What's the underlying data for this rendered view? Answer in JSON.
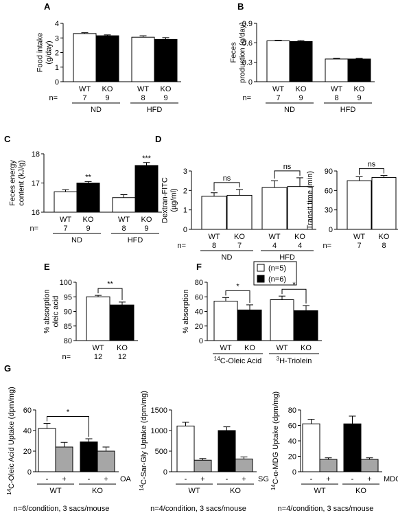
{
  "chart_data": [
    {
      "id": "A",
      "type": "bar",
      "panel_label": "A",
      "ylabel": "Food intake\n(g/day)",
      "ylim": [
        0,
        4
      ],
      "yticks": [
        "0",
        "1",
        "2",
        "3",
        "4"
      ],
      "n_prefix": "n=",
      "bars": [
        {
          "category": "WT",
          "value": 3.3,
          "error": 0.06,
          "fill": "white",
          "n": "7"
        },
        {
          "category": "KO",
          "value": 3.15,
          "error": 0.06,
          "fill": "black",
          "n": "9"
        },
        {
          "category": "WT",
          "value": 3.05,
          "error": 0.1,
          "fill": "white",
          "n": "8"
        },
        {
          "category": "KO",
          "value": 2.9,
          "error": 0.12,
          "fill": "black",
          "n": "9"
        }
      ],
      "groups": [
        {
          "label": "ND",
          "bars": [
            0,
            1
          ]
        },
        {
          "label": "HFD",
          "bars": [
            2,
            3
          ]
        }
      ]
    },
    {
      "id": "B",
      "type": "bar",
      "panel_label": "B",
      "ylabel": "Feces\nproduction (g/day)",
      "ylim": [
        0,
        0.9
      ],
      "yticks": [
        "0",
        "0.3",
        "0.6",
        "0.9"
      ],
      "n_prefix": "n=",
      "bars": [
        {
          "category": "WT",
          "value": 0.63,
          "error": 0.01,
          "fill": "white",
          "n": "7"
        },
        {
          "category": "KO",
          "value": 0.62,
          "error": 0.015,
          "fill": "black",
          "n": "9"
        },
        {
          "category": "WT",
          "value": 0.35,
          "error": 0.01,
          "fill": "white",
          "n": "8"
        },
        {
          "category": "KO",
          "value": 0.35,
          "error": 0.01,
          "fill": "black",
          "n": "9"
        }
      ],
      "groups": [
        {
          "label": "ND",
          "bars": [
            0,
            1
          ]
        },
        {
          "label": "HFD",
          "bars": [
            2,
            3
          ]
        }
      ]
    },
    {
      "id": "C",
      "type": "bar",
      "panel_label": "C",
      "ylabel": "Feces energy\ncontent (kJ/g)",
      "ylim": [
        16,
        18
      ],
      "yticks": [
        "16",
        "17",
        "18"
      ],
      "n_prefix": "n=",
      "bars": [
        {
          "category": "WT",
          "value": 16.7,
          "error": 0.07,
          "fill": "white",
          "n": "7"
        },
        {
          "category": "KO",
          "value": 17.0,
          "error": 0.05,
          "fill": "black",
          "n": "9",
          "sig": "**"
        },
        {
          "category": "WT",
          "value": 16.5,
          "error": 0.1,
          "fill": "white",
          "n": "8"
        },
        {
          "category": "KO",
          "value": 17.6,
          "error": 0.1,
          "fill": "black",
          "n": "9",
          "sig": "***"
        }
      ],
      "groups": [
        {
          "label": "ND",
          "bars": [
            0,
            1
          ]
        },
        {
          "label": "HFD",
          "bars": [
            2,
            3
          ]
        }
      ]
    },
    {
      "id": "D1",
      "type": "bar",
      "panel_label": "D",
      "ylabel": "Dextran-FITC\n(µg/ml)",
      "ylim": [
        0,
        3
      ],
      "yticks": [
        "0",
        "1",
        "2",
        "3"
      ],
      "n_prefix": "n=",
      "bars": [
        {
          "category": "WT",
          "value": 1.7,
          "error": 0.18,
          "fill": "white",
          "n": "8"
        },
        {
          "category": "KO",
          "value": 1.75,
          "error": 0.3,
          "fill": "white",
          "n": "7"
        },
        {
          "category": "WT",
          "value": 2.15,
          "error": 0.35,
          "fill": "white",
          "n": "4"
        },
        {
          "category": "KO",
          "value": 2.2,
          "error": 0.45,
          "fill": "white",
          "n": "4"
        }
      ],
      "groups": [
        {
          "label": "ND",
          "bars": [
            0,
            1
          ]
        },
        {
          "label": "HFD",
          "bars": [
            2,
            3
          ]
        }
      ],
      "brackets": [
        {
          "from": 0,
          "to": 1,
          "label": "ns"
        },
        {
          "from": 2,
          "to": 3,
          "label": "ns"
        }
      ]
    },
    {
      "id": "D2",
      "type": "bar",
      "panel_label": "",
      "ylabel": "Transit time (min)",
      "ylim": [
        0,
        90
      ],
      "yticks": [
        "0",
        "30",
        "60",
        "90"
      ],
      "n_prefix": "n=",
      "bars": [
        {
          "category": "WT",
          "value": 75,
          "error": 6,
          "fill": "white",
          "n": "7"
        },
        {
          "category": "KO",
          "value": 80,
          "error": 3,
          "fill": "white",
          "n": "8"
        }
      ],
      "groups": [],
      "brackets": [
        {
          "from": 0,
          "to": 1,
          "label": "ns"
        }
      ]
    },
    {
      "id": "E",
      "type": "bar",
      "panel_label": "E",
      "ylabel": "% absorption\noleic acid",
      "ylim": [
        80,
        100
      ],
      "yticks": [
        "80",
        "85",
        "90",
        "95",
        "100"
      ],
      "n_prefix": "n=",
      "bars": [
        {
          "category": "WT",
          "value": 95,
          "error": 0.5,
          "fill": "white",
          "n": "12"
        },
        {
          "category": "KO",
          "value": 92.2,
          "error": 1.0,
          "fill": "black",
          "n": "12"
        }
      ],
      "groups": [],
      "brackets": [
        {
          "from": 0,
          "to": 1,
          "label": "**"
        }
      ]
    },
    {
      "id": "F",
      "type": "bar",
      "panel_label": "F",
      "ylabel": "% absorption",
      "ylim": [
        0,
        80
      ],
      "yticks": [
        "0",
        "20",
        "40",
        "60",
        "80"
      ],
      "legend": [
        {
          "label": "(n=5)",
          "fill": "white"
        },
        {
          "label": "(n=6)",
          "fill": "black"
        }
      ],
      "bars": [
        {
          "category": "WT",
          "value": 54,
          "error": 5,
          "fill": "white"
        },
        {
          "category": "KO",
          "value": 42,
          "error": 7,
          "fill": "black"
        },
        {
          "category": "WT",
          "value": 56,
          "error": 5,
          "fill": "white"
        },
        {
          "category": "KO",
          "value": 41,
          "error": 7,
          "fill": "black"
        }
      ],
      "groups_sup": [
        {
          "sup": "14",
          "label": "C-Oleic Acid",
          "bars": [
            0,
            1
          ]
        },
        {
          "sup": "3",
          "label": "H-Triolein",
          "bars": [
            2,
            3
          ]
        }
      ],
      "brackets": [
        {
          "from": 0,
          "to": 1,
          "label": "*"
        },
        {
          "from": 2,
          "to": 3,
          "label": "*"
        }
      ]
    },
    {
      "id": "G1",
      "type": "bar",
      "panel_label": "G",
      "ylabel_sup": "14",
      "ylabel": "C-Oleic Acid Uptake (dpm/mg)",
      "ylim": [
        0,
        60
      ],
      "yticks": [
        "0",
        "20",
        "40",
        "60"
      ],
      "treatment": "OA",
      "bars": [
        {
          "category": "-",
          "value": 42,
          "error": 5,
          "fill": "white"
        },
        {
          "category": "+",
          "value": 24,
          "error": 4.5,
          "fill": "gray"
        },
        {
          "category": "-",
          "value": 29,
          "error": 3,
          "fill": "black"
        },
        {
          "category": "+",
          "value": 20,
          "error": 4,
          "fill": "gray"
        }
      ],
      "groups": [
        {
          "label": "WT",
          "bars": [
            0,
            1
          ]
        },
        {
          "label": "KO",
          "bars": [
            2,
            3
          ]
        }
      ],
      "brackets": [
        {
          "from": 0,
          "to": 2,
          "label": "*"
        }
      ],
      "footnote": "n=6/condition, 3 sacs/mouse"
    },
    {
      "id": "G2",
      "type": "bar",
      "panel_label": "",
      "ylabel_sup": "14",
      "ylabel": "C-Sar-Gly Uptake (dpm/mg)",
      "ylim": [
        0,
        1500
      ],
      "yticks": [
        "0",
        "500",
        "1000",
        "1500"
      ],
      "treatment": "SG",
      "bars": [
        {
          "category": "-",
          "value": 1110,
          "error": 90,
          "fill": "white"
        },
        {
          "category": "+",
          "value": 280,
          "error": 40,
          "fill": "gray"
        },
        {
          "category": "-",
          "value": 1000,
          "error": 90,
          "fill": "black"
        },
        {
          "category": "+",
          "value": 310,
          "error": 50,
          "fill": "gray"
        }
      ],
      "groups": [
        {
          "label": "WT",
          "bars": [
            0,
            1
          ]
        },
        {
          "label": "KO",
          "bars": [
            2,
            3
          ]
        }
      ],
      "footnote": "n=4/condition, 3 sacs/mouse"
    },
    {
      "id": "G3",
      "type": "bar",
      "panel_label": "",
      "ylabel_sup": "14",
      "ylabel": "C-α-MDG Uptake (dpm/mg)",
      "ylim": [
        0,
        80
      ],
      "yticks": [
        "0",
        "20",
        "40",
        "60",
        "80"
      ],
      "treatment": "MDG",
      "bars": [
        {
          "category": "-",
          "value": 62,
          "error": 6,
          "fill": "white"
        },
        {
          "category": "+",
          "value": 16,
          "error": 2,
          "fill": "gray"
        },
        {
          "category": "-",
          "value": 62,
          "error": 10,
          "fill": "black"
        },
        {
          "category": "+",
          "value": 16,
          "error": 2,
          "fill": "gray"
        }
      ],
      "groups": [
        {
          "label": "WT",
          "bars": [
            0,
            1
          ]
        },
        {
          "label": "KO",
          "bars": [
            2,
            3
          ]
        }
      ],
      "footnote": "n=4/condition, 3 sacs/mouse"
    }
  ],
  "colors": {
    "white": "#ffffff",
    "black": "#000000",
    "gray": "#a6a6a6",
    "axis": "#000000"
  }
}
